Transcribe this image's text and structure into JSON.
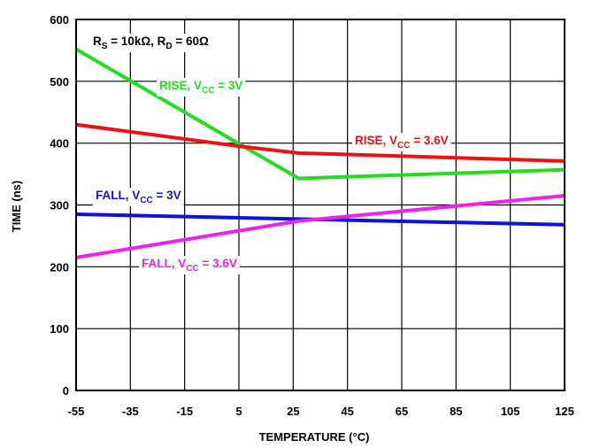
{
  "chart_data": {
    "type": "line",
    "xlabel": "TEMPERATURE (°C)",
    "ylabel": "TIME (ns)",
    "xlim": [
      -55,
      125
    ],
    "ylim": [
      0,
      600
    ],
    "x_ticks": [
      "-55",
      "-35",
      "-15",
      "5",
      "25",
      "45",
      "65",
      "85",
      "105",
      "125"
    ],
    "y_ticks": [
      "0",
      "100",
      "200",
      "300",
      "400",
      "500",
      "600"
    ],
    "grid": true,
    "condition": {
      "prefix": "R",
      "sub1": "S",
      "mid": " = 10kΩ, R",
      "sub2": "D",
      "suffix": " = 60Ω"
    },
    "series": [
      {
        "name": "RISE, VCC = 3V",
        "label_prefix": "RISE, V",
        "label_sub": "CC",
        "label_suffix": " = 3V",
        "color": "#22dd22",
        "x": [
          -55,
          27,
          125
        ],
        "y": [
          552,
          343,
          357
        ]
      },
      {
        "name": "RISE, VCC = 3.6V",
        "label_prefix": "RISE, V",
        "label_sub": "CC",
        "label_suffix": " = 3.6V",
        "color": "#ee1111",
        "x": [
          -55,
          5,
          27,
          125
        ],
        "y": [
          430,
          395,
          384,
          371
        ]
      },
      {
        "name": "FALL, VCC = 3V",
        "label_prefix": "FALL, V",
        "label_sub": "CC",
        "label_suffix": " = 3V",
        "color": "#1111dd",
        "x": [
          -55,
          125
        ],
        "y": [
          285,
          268
        ]
      },
      {
        "name": "FALL, VCC = 3.6V",
        "label_prefix": "FALL, V",
        "label_sub": "CC",
        "label_suffix": " = 3.6V",
        "color": "#ee22ee",
        "x": [
          -55,
          27,
          125
        ],
        "y": [
          215,
          274,
          315
        ]
      }
    ]
  }
}
